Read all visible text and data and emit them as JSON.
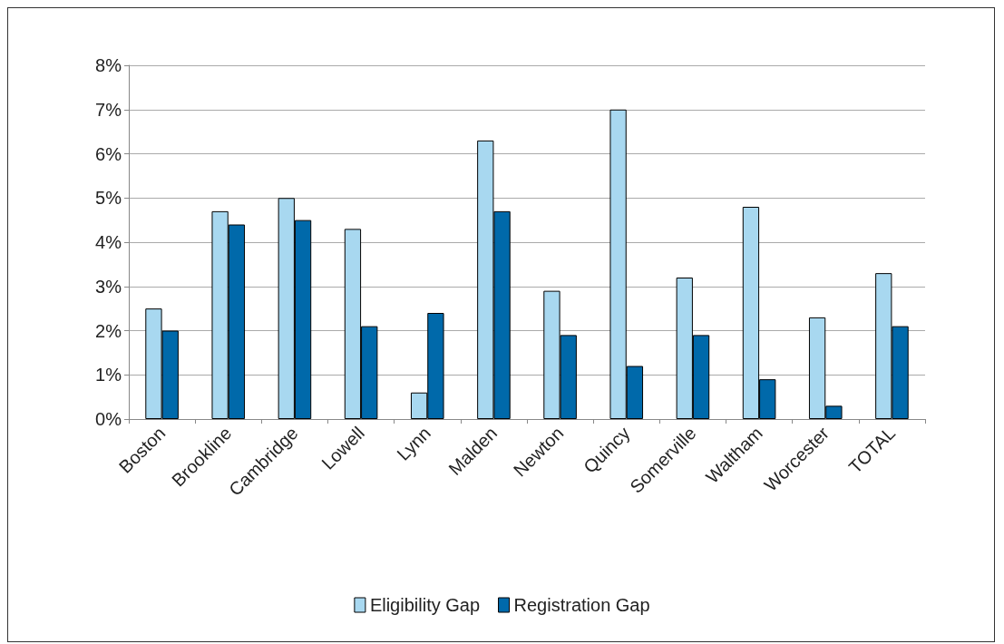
{
  "chart_data": {
    "type": "bar",
    "categories": [
      "Boston",
      "Brookline",
      "Cambridge",
      "Lowell",
      "Lynn",
      "Malden",
      "Newton",
      "Quincy",
      "Somerville",
      "Waltham",
      "Worcester",
      "TOTAL"
    ],
    "series": [
      {
        "name": "Eligibility Gap",
        "color": "#a8d8f0",
        "values": [
          2.5,
          4.7,
          5.0,
          4.3,
          0.6,
          6.3,
          2.9,
          7.0,
          3.2,
          4.8,
          2.3,
          3.3
        ]
      },
      {
        "name": "Registration Gap",
        "color": "#0069aa",
        "values": [
          2.0,
          4.4,
          4.5,
          2.1,
          2.4,
          4.7,
          1.9,
          1.2,
          1.9,
          0.9,
          0.3,
          2.1
        ]
      }
    ],
    "ylim": [
      0,
      8
    ],
    "yticks": [
      {
        "value": 0,
        "label": "0%"
      },
      {
        "value": 1,
        "label": "1%"
      },
      {
        "value": 2,
        "label": "2%"
      },
      {
        "value": 3,
        "label": "3%"
      },
      {
        "value": 4,
        "label": "4%"
      },
      {
        "value": 5,
        "label": "5%"
      },
      {
        "value": 6,
        "label": "6%"
      },
      {
        "value": 7,
        "label": "7%"
      },
      {
        "value": 8,
        "label": "8%"
      }
    ],
    "grid": "y",
    "legend": "bottom"
  }
}
